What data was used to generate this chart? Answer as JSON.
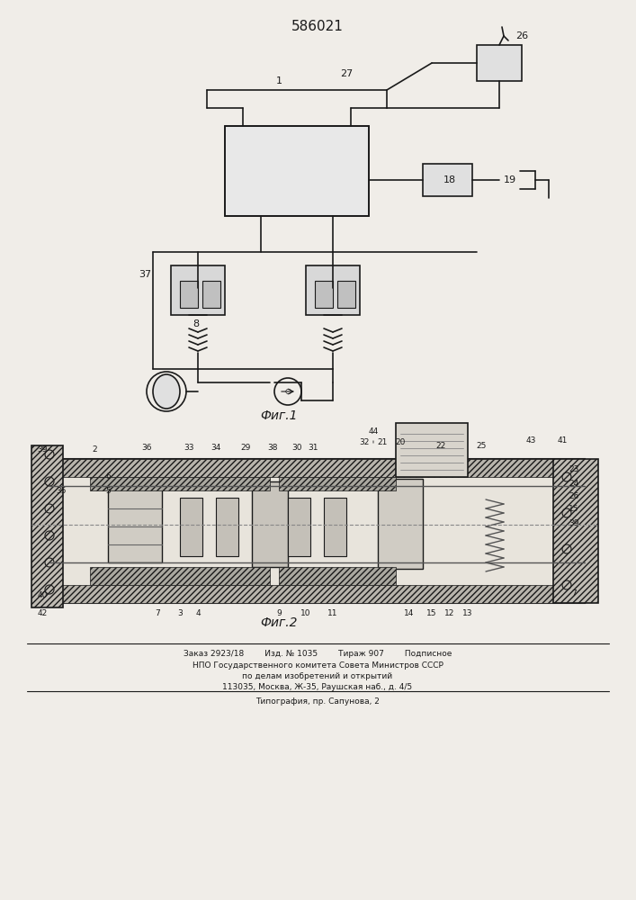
{
  "patent_number": "586021",
  "fig1_label": "Фиг.1",
  "fig2_label": "Фиг.2",
  "footer_line1": "Заказ 2923/18        Изд. № 1035        Тираж 907        Подписное",
  "footer_line2": "НПО Государственного комитета Совета Министров СССР",
  "footer_line3": "по делам изобретений и открытий",
  "footer_line4": "113035, Москва, Ж-35, Раушская наб., д. 4/5",
  "footer_line5": "Типография, пр. Сапунова, 2",
  "bg_color": "#f0ede8",
  "line_color": "#1a1a1a",
  "fig_width": 7.07,
  "fig_height": 10.0
}
